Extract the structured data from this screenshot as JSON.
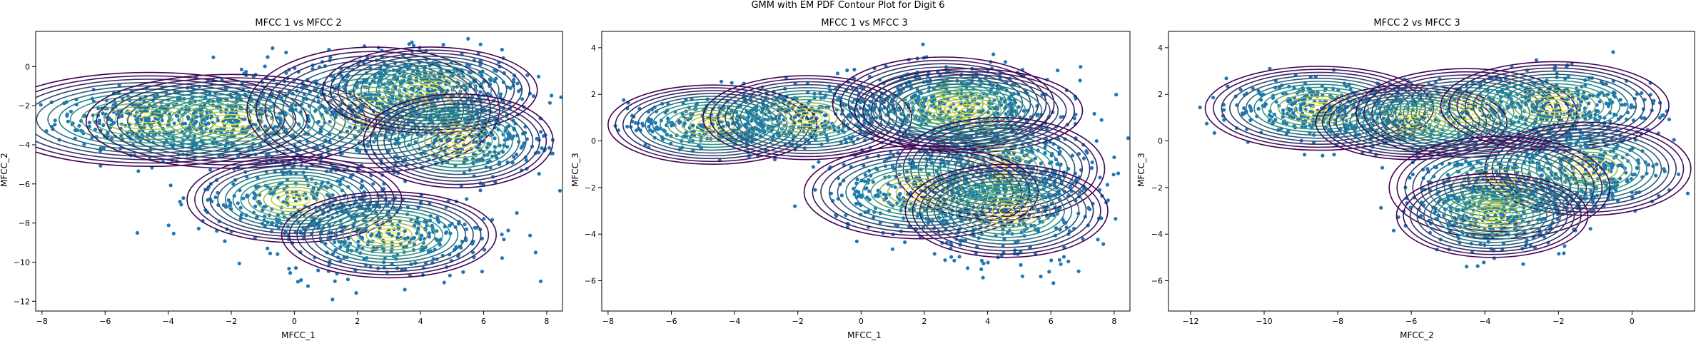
{
  "figure_title": "GMM with EM PDF Contour Plot for Digit 6",
  "colors": {
    "points": "#1f77b4",
    "contour_low": "#440154",
    "contour_mid": "#21918c",
    "contour_high": "#fde725",
    "axes": "#000000"
  },
  "chart_data": [
    {
      "type": "scatter",
      "title": "MFCC 1 vs MFCC 2",
      "xlabel": "MFCC_1",
      "ylabel": "MFCC_2",
      "xlim": [
        -8.2,
        8.5
      ],
      "ylim": [
        -12.5,
        1.8
      ],
      "xticks": [
        -8,
        -6,
        -4,
        -2,
        0,
        2,
        4,
        6,
        8
      ],
      "yticks": [
        -12,
        -10,
        -8,
        -6,
        -4,
        -2,
        0
      ],
      "grid": false,
      "series": [
        {
          "kind": "gmm-samples",
          "clusters": [
            {
              "mean": [
                -4.6,
                -2.7
              ],
              "std": [
                1.5,
                0.7
              ],
              "n": 320
            },
            {
              "mean": [
                -2.0,
                -2.8
              ],
              "std": [
                1.3,
                1.0
              ],
              "n": 260
            },
            {
              "mean": [
                2.5,
                -2.2
              ],
              "std": [
                2.0,
                1.4
              ],
              "n": 520
            },
            {
              "mean": [
                4.3,
                -1.2
              ],
              "std": [
                1.4,
                0.9
              ],
              "n": 300
            },
            {
              "mean": [
                0.0,
                -6.7
              ],
              "std": [
                1.5,
                1.2
              ],
              "n": 300
            },
            {
              "mean": [
                3.0,
                -8.6
              ],
              "std": [
                1.7,
                1.1
              ],
              "n": 320
            },
            {
              "mean": [
                5.7,
                -3.8
              ],
              "std": [
                1.2,
                1.0
              ],
              "n": 220
            }
          ]
        }
      ],
      "gmm_components": [
        {
          "mean": [
            -4.6,
            -2.7
          ],
          "rx": 5.0,
          "ry": 2.4,
          "angle": 0
        },
        {
          "mean": [
            -2.0,
            -2.8
          ],
          "rx": 4.6,
          "ry": 2.4,
          "angle": 0
        },
        {
          "mean": [
            2.5,
            -2.2
          ],
          "rx": 4.0,
          "ry": 3.2,
          "angle": 0
        },
        {
          "mean": [
            4.3,
            -1.2
          ],
          "rx": 3.4,
          "ry": 2.2,
          "angle": 0
        },
        {
          "mean": [
            0.0,
            -6.8
          ],
          "rx": 3.4,
          "ry": 2.2,
          "angle": 0
        },
        {
          "mean": [
            3.0,
            -8.6
          ],
          "rx": 3.4,
          "ry": 2.2,
          "angle": 0
        },
        {
          "mean": [
            5.2,
            -3.8
          ],
          "rx": 3.0,
          "ry": 2.4,
          "angle": 0
        }
      ]
    },
    {
      "type": "scatter",
      "title": "MFCC 1 vs MFCC 3",
      "xlabel": "MFCC_1",
      "ylabel": "MFCC_3",
      "xlim": [
        -8.2,
        8.5
      ],
      "ylim": [
        -7.3,
        4.7
      ],
      "xticks": [
        -8,
        -6,
        -4,
        -2,
        0,
        2,
        4,
        6,
        8
      ],
      "yticks": [
        -6,
        -4,
        -2,
        0,
        2,
        4
      ],
      "grid": false,
      "series": [
        {
          "kind": "gmm-samples",
          "clusters": [
            {
              "mean": [
                -4.6,
                0.7
              ],
              "std": [
                1.4,
                0.5
              ],
              "n": 300
            },
            {
              "mean": [
                -1.8,
                1.0
              ],
              "std": [
                1.3,
                0.7
              ],
              "n": 280
            },
            {
              "mean": [
                2.7,
                1.5
              ],
              "std": [
                1.8,
                0.8
              ],
              "n": 480
            },
            {
              "mean": [
                4.4,
                -1.2
              ],
              "std": [
                1.4,
                1.0
              ],
              "n": 340
            },
            {
              "mean": [
                2.0,
                -2.2
              ],
              "std": [
                1.6,
                0.9
              ],
              "n": 280
            },
            {
              "mean": [
                4.5,
                -3.0
              ],
              "std": [
                1.5,
                1.2
              ],
              "n": 300
            }
          ]
        }
      ],
      "gmm_components": [
        {
          "mean": [
            -4.7,
            0.7
          ],
          "rx": 3.3,
          "ry": 1.7,
          "angle": 0
        },
        {
          "mean": [
            -1.7,
            1.0
          ],
          "rx": 3.3,
          "ry": 1.8,
          "angle": 0
        },
        {
          "mean": [
            2.6,
            1.6
          ],
          "rx": 3.5,
          "ry": 2.0,
          "angle": 0
        },
        {
          "mean": [
            3.4,
            1.3
          ],
          "rx": 3.6,
          "ry": 1.8,
          "angle": 0
        },
        {
          "mean": [
            4.4,
            -1.2
          ],
          "rx": 3.3,
          "ry": 2.2,
          "angle": 0
        },
        {
          "mean": [
            1.9,
            -2.2
          ],
          "rx": 3.7,
          "ry": 2.0,
          "angle": 0
        },
        {
          "mean": [
            4.6,
            -3.0
          ],
          "rx": 3.2,
          "ry": 2.0,
          "angle": 0
        }
      ]
    },
    {
      "type": "scatter",
      "title": "MFCC 2 vs MFCC 3",
      "xlabel": "MFCC_2",
      "ylabel": "MFCC_3",
      "xlim": [
        -12.6,
        1.7
      ],
      "ylim": [
        -7.3,
        4.7
      ],
      "xticks": [
        -12,
        -10,
        -8,
        -6,
        -4,
        -2,
        0
      ],
      "yticks": [
        -6,
        -4,
        -2,
        0,
        2,
        4
      ],
      "grid": false,
      "series": [
        {
          "kind": "gmm-samples",
          "clusters": [
            {
              "mean": [
                -8.5,
                1.4
              ],
              "std": [
                1.2,
                0.6
              ],
              "n": 320
            },
            {
              "mean": [
                -6.0,
                0.8
              ],
              "std": [
                1.0,
                0.7
              ],
              "n": 200
            },
            {
              "mean": [
                -2.2,
                1.5
              ],
              "std": [
                1.4,
                0.7
              ],
              "n": 380
            },
            {
              "mean": [
                -1.2,
                -1.2
              ],
              "std": [
                1.0,
                0.9
              ],
              "n": 300
            },
            {
              "mean": [
                -3.6,
                -2.0
              ],
              "std": [
                1.2,
                0.9
              ],
              "n": 300
            },
            {
              "mean": [
                -3.8,
                -3.2
              ],
              "std": [
                1.0,
                0.9
              ],
              "n": 220
            }
          ]
        }
      ],
      "gmm_components": [
        {
          "mean": [
            -8.5,
            1.4
          ],
          "rx": 3.1,
          "ry": 1.8,
          "angle": 0
        },
        {
          "mean": [
            -6.0,
            0.8
          ],
          "rx": 2.6,
          "ry": 1.6,
          "angle": 0
        },
        {
          "mean": [
            -4.5,
            1.2
          ],
          "rx": 3.0,
          "ry": 1.9,
          "angle": 0
        },
        {
          "mean": [
            -2.1,
            1.5
          ],
          "rx": 3.1,
          "ry": 1.9,
          "angle": 0
        },
        {
          "mean": [
            -1.2,
            -1.2
          ],
          "rx": 2.8,
          "ry": 2.0,
          "angle": 0
        },
        {
          "mean": [
            -3.6,
            -2.0
          ],
          "rx": 3.0,
          "ry": 2.2,
          "angle": 0
        },
        {
          "mean": [
            -3.8,
            -3.2
          ],
          "rx": 2.6,
          "ry": 1.8,
          "angle": 0
        }
      ]
    }
  ]
}
